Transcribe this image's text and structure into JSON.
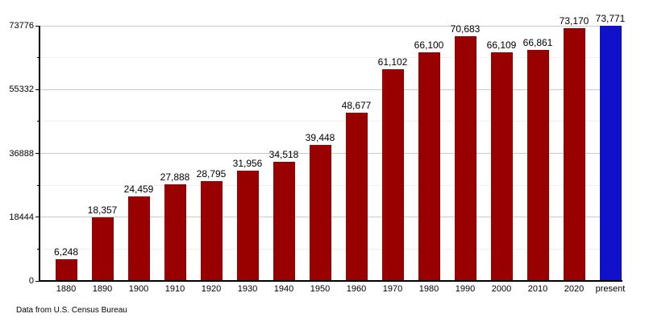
{
  "chart_data": {
    "type": "bar",
    "title": "",
    "xlabel": "",
    "ylabel": "",
    "categories": [
      "1880",
      "1890",
      "1900",
      "1910",
      "1920",
      "1930",
      "1940",
      "1950",
      "1960",
      "1970",
      "1980",
      "1990",
      "2000",
      "2010",
      "2020",
      "present"
    ],
    "values": [
      6248,
      18357,
      24459,
      27888,
      28795,
      31956,
      34518,
      39448,
      48677,
      61102,
      66100,
      70683,
      66109,
      66861,
      73170,
      73771
    ],
    "value_labels": [
      "6,248",
      "18,357",
      "24,459",
      "27,888",
      "28,795",
      "31,956",
      "34,518",
      "39,448",
      "48,677",
      "61,102",
      "66,100",
      "70,683",
      "66,109",
      "66,861",
      "73,170",
      "73,771"
    ],
    "ylim": [
      0,
      73776
    ],
    "yticks": [
      {
        "value": 0,
        "label": "0"
      },
      {
        "value": 18444,
        "label": "18444"
      },
      {
        "value": 36888,
        "label": "36888"
      },
      {
        "value": 55332,
        "label": "55332"
      },
      {
        "value": 73776,
        "label": "73776"
      }
    ],
    "minor_yticks": [
      9222,
      27666,
      46110,
      64554
    ],
    "grid": "horizontal major + minor",
    "legend": "none",
    "highlight_index": 15,
    "colors": {
      "bar": "#990000",
      "highlight_bar": "#1111cc",
      "grid_major": "#c9c9c9",
      "grid_minor": "#efefef",
      "axis": "#000000",
      "text": "#000000"
    }
  },
  "footer": {
    "caption": "Data from U.S. Census Bureau"
  }
}
